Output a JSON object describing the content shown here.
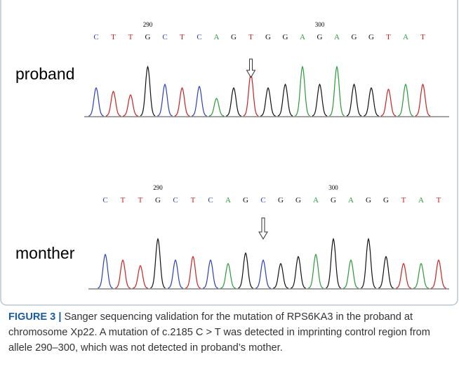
{
  "panels": [
    {
      "label": "proband",
      "bases": [
        "C",
        "T",
        "T",
        "G",
        "C",
        "T",
        "C",
        "A",
        "G",
        "T",
        "G",
        "G",
        "A",
        "G",
        "A",
        "G",
        "G",
        "T",
        "A",
        "T"
      ],
      "position_labels": [
        "290",
        "300"
      ]
    },
    {
      "label": "monther",
      "bases": [
        "C",
        "T",
        "T",
        "G",
        "C",
        "T",
        "C",
        "A",
        "G",
        "C",
        "G",
        "G",
        "A",
        "G",
        "A",
        "G",
        "G",
        "T",
        "A",
        "T"
      ],
      "position_labels": [
        "290",
        "300"
      ]
    }
  ],
  "caption": {
    "label": "FIGURE 3 |",
    "text": "Sanger sequencing validation for the mutation of RPS6KA3 in the proband at chromosome Xp22. A mutation of c.2185 C > T was detected in imprinting control region from allele 290–300, which was not detected in proband’s mother."
  }
}
